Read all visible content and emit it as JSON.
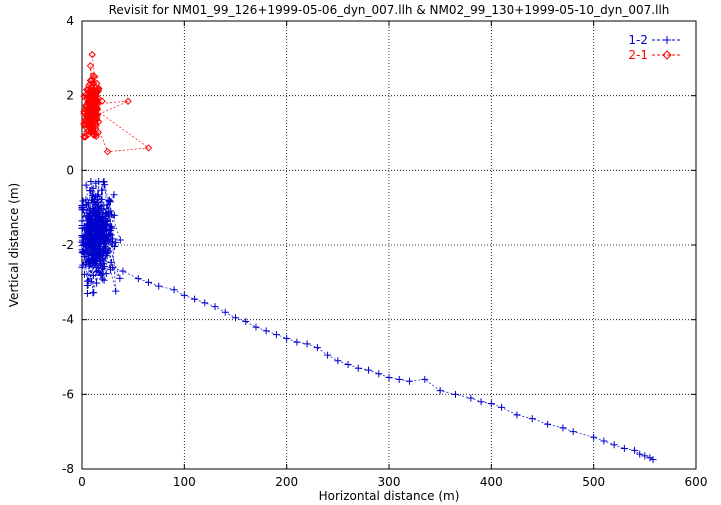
{
  "chart_data": {
    "type": "scatter",
    "title": "Revisit for NM01_99_126+1999-05-06_dyn_007.llh & NM02_99_130+1999-05-10_dyn_007.llh",
    "xlabel": "Horizontal distance (m)",
    "ylabel": "Vertical distance (m)",
    "xlim": [
      0,
      600
    ],
    "ylim": [
      -8,
      4
    ],
    "xticks": [
      0,
      100,
      200,
      300,
      400,
      500,
      600
    ],
    "yticks": [
      -8,
      -6,
      -4,
      -2,
      0,
      2,
      4
    ],
    "grid": true,
    "legend_position": "top-right",
    "series": [
      {
        "name": "1-2",
        "color": "#0000cc",
        "marker": "plus",
        "line": "dashed",
        "trend_points": [
          [
            30,
            -2.6
          ],
          [
            40,
            -2.7
          ],
          [
            55,
            -2.9
          ],
          [
            65,
            -3.0
          ],
          [
            75,
            -3.1
          ],
          [
            90,
            -3.2
          ],
          [
            100,
            -3.35
          ],
          [
            110,
            -3.45
          ],
          [
            120,
            -3.55
          ],
          [
            130,
            -3.65
          ],
          [
            140,
            -3.8
          ],
          [
            150,
            -3.95
          ],
          [
            160,
            -4.05
          ],
          [
            170,
            -4.2
          ],
          [
            180,
            -4.3
          ],
          [
            190,
            -4.4
          ],
          [
            200,
            -4.5
          ],
          [
            210,
            -4.6
          ],
          [
            220,
            -4.65
          ],
          [
            230,
            -4.75
          ],
          [
            240,
            -4.95
          ],
          [
            250,
            -5.1
          ],
          [
            260,
            -5.2
          ],
          [
            270,
            -5.3
          ],
          [
            280,
            -5.35
          ],
          [
            290,
            -5.45
          ],
          [
            300,
            -5.55
          ],
          [
            310,
            -5.6
          ],
          [
            320,
            -5.65
          ],
          [
            335,
            -5.6
          ],
          [
            350,
            -5.9
          ],
          [
            365,
            -6.0
          ],
          [
            380,
            -6.1
          ],
          [
            390,
            -6.2
          ],
          [
            400,
            -6.25
          ],
          [
            410,
            -6.35
          ],
          [
            425,
            -6.55
          ],
          [
            440,
            -6.65
          ],
          [
            455,
            -6.8
          ],
          [
            470,
            -6.9
          ],
          [
            480,
            -7.0
          ],
          [
            500,
            -7.15
          ],
          [
            510,
            -7.25
          ],
          [
            520,
            -7.35
          ],
          [
            530,
            -7.45
          ],
          [
            540,
            -7.5
          ],
          [
            545,
            -7.6
          ],
          [
            550,
            -7.65
          ],
          [
            555,
            -7.7
          ],
          [
            558,
            -7.75
          ]
        ],
        "cluster": {
          "x_range": [
            0,
            38
          ],
          "y_range": [
            -3.3,
            -0.3
          ],
          "center": [
            14,
            -1.7
          ]
        }
      },
      {
        "name": "2-1",
        "color": "#ff0000",
        "marker": "diamond",
        "line": "dashed",
        "outliers": [
          [
            45,
            1.85
          ],
          [
            65,
            0.6
          ],
          [
            25,
            0.5
          ],
          [
            10,
            3.1
          ]
        ],
        "cluster": {
          "x_range": [
            2,
            20
          ],
          "y_range": [
            0.9,
            2.8
          ],
          "center": [
            10,
            1.6
          ]
        }
      }
    ]
  }
}
